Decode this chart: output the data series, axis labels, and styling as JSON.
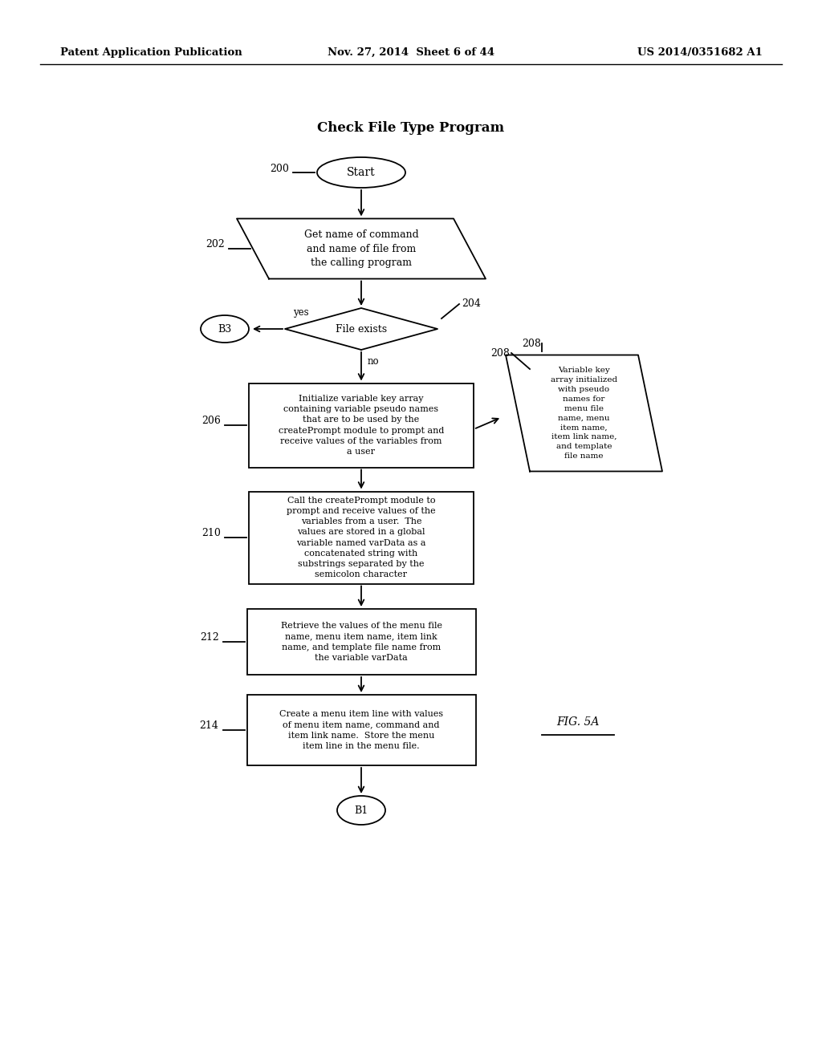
{
  "header_left": "Patent Application Publication",
  "header_center": "Nov. 27, 2014  Sheet 6 of 44",
  "header_right": "US 2014/0351682 A1",
  "title": "Check File Type Program",
  "fig_label": "FIG. 5A",
  "background_color": "#ffffff"
}
